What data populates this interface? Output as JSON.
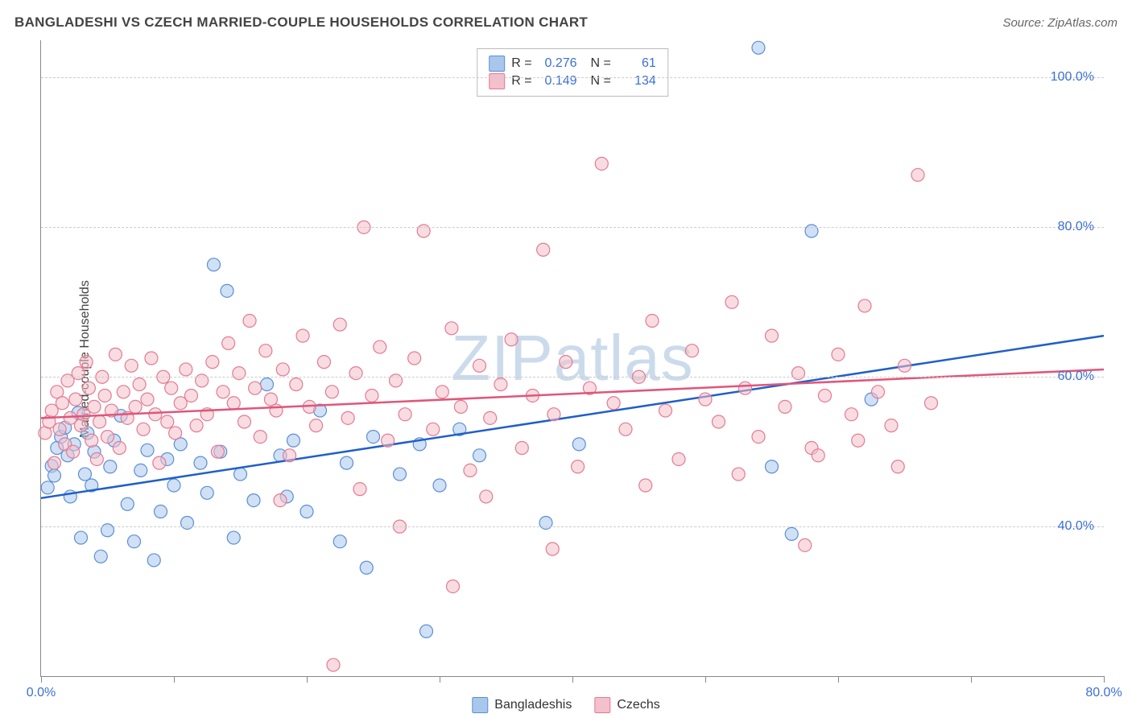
{
  "title": "BANGLADESHI VS CZECH MARRIED-COUPLE HOUSEHOLDS CORRELATION CHART",
  "source": "Source: ZipAtlas.com",
  "watermark": "ZIPatlas",
  "ylabel": "Married-couple Households",
  "chart": {
    "type": "scatter",
    "xlim": [
      0,
      80
    ],
    "ylim": [
      20,
      105
    ],
    "xticks": [
      0,
      10,
      20,
      30,
      40,
      50,
      60,
      70,
      80
    ],
    "xtick_labels": {
      "0": "0.0%",
      "80": "80.0%"
    },
    "yticks": [
      40,
      60,
      80,
      100
    ],
    "ytick_labels": [
      "40.0%",
      "60.0%",
      "80.0%",
      "100.0%"
    ],
    "grid_color": "#cccccc",
    "background_color": "#ffffff",
    "axis_color": "#888888",
    "marker_radius": 8,
    "marker_opacity": 0.55,
    "series": [
      {
        "name": "Bangladeshis",
        "fill": "#a9c7ec",
        "stroke": "#5a8fd6",
        "R": "0.276",
        "N": "61",
        "trend": {
          "color": "#1f5fc9",
          "width": 2.5,
          "y_at_x0": 43.8,
          "y_at_xmax": 65.5
        },
        "points": [
          [
            0.5,
            45.2
          ],
          [
            0.8,
            48.1
          ],
          [
            1.0,
            46.8
          ],
          [
            1.2,
            50.5
          ],
          [
            1.5,
            52.0
          ],
          [
            1.8,
            53.2
          ],
          [
            2.0,
            49.5
          ],
          [
            2.2,
            44.0
          ],
          [
            2.5,
            51.0
          ],
          [
            2.8,
            55.2
          ],
          [
            3.0,
            38.5
          ],
          [
            3.3,
            47.0
          ],
          [
            3.5,
            52.5
          ],
          [
            3.8,
            45.5
          ],
          [
            4.0,
            50.0
          ],
          [
            4.5,
            36.0
          ],
          [
            5.0,
            39.5
          ],
          [
            5.2,
            48.0
          ],
          [
            5.5,
            51.5
          ],
          [
            6.0,
            54.8
          ],
          [
            6.5,
            43.0
          ],
          [
            7.0,
            38.0
          ],
          [
            7.5,
            47.5
          ],
          [
            8.0,
            50.2
          ],
          [
            8.5,
            35.5
          ],
          [
            9.0,
            42.0
          ],
          [
            9.5,
            49.0
          ],
          [
            10.0,
            45.5
          ],
          [
            10.5,
            51.0
          ],
          [
            11.0,
            40.5
          ],
          [
            12.0,
            48.5
          ],
          [
            12.5,
            44.5
          ],
          [
            13.0,
            75.0
          ],
          [
            13.5,
            50.0
          ],
          [
            14.0,
            71.5
          ],
          [
            14.5,
            38.5
          ],
          [
            15.0,
            47.0
          ],
          [
            16.0,
            43.5
          ],
          [
            17.0,
            59.0
          ],
          [
            18.0,
            49.5
          ],
          [
            18.5,
            44.0
          ],
          [
            19.0,
            51.5
          ],
          [
            20.0,
            42.0
          ],
          [
            21.0,
            55.5
          ],
          [
            22.5,
            38.0
          ],
          [
            23.0,
            48.5
          ],
          [
            24.5,
            34.5
          ],
          [
            25.0,
            52.0
          ],
          [
            27.0,
            47.0
          ],
          [
            28.5,
            51.0
          ],
          [
            29.0,
            26.0
          ],
          [
            30.0,
            45.5
          ],
          [
            31.5,
            53.0
          ],
          [
            33.0,
            49.5
          ],
          [
            38.0,
            40.5
          ],
          [
            40.5,
            51.0
          ],
          [
            54.0,
            104.0
          ],
          [
            56.5,
            39.0
          ],
          [
            58.0,
            79.5
          ],
          [
            62.5,
            57.0
          ],
          [
            55.0,
            48.0
          ]
        ]
      },
      {
        "name": "Czechs",
        "fill": "#f3c0cb",
        "stroke": "#e47a93",
        "R": "0.149",
        "N": "134",
        "trend": {
          "color": "#e0567a",
          "width": 2.5,
          "y_at_x0": 54.5,
          "y_at_xmax": 61.0
        },
        "points": [
          [
            0.3,
            52.5
          ],
          [
            0.6,
            54.0
          ],
          [
            0.8,
            55.5
          ],
          [
            1.0,
            48.5
          ],
          [
            1.2,
            58.0
          ],
          [
            1.4,
            53.0
          ],
          [
            1.6,
            56.5
          ],
          [
            1.8,
            51.0
          ],
          [
            2.0,
            59.5
          ],
          [
            2.2,
            54.5
          ],
          [
            2.4,
            50.0
          ],
          [
            2.6,
            57.0
          ],
          [
            2.8,
            60.5
          ],
          [
            3.0,
            53.5
          ],
          [
            3.2,
            55.0
          ],
          [
            3.4,
            62.0
          ],
          [
            3.6,
            58.5
          ],
          [
            3.8,
            51.5
          ],
          [
            4.0,
            56.0
          ],
          [
            4.2,
            49.0
          ],
          [
            4.4,
            54.0
          ],
          [
            4.6,
            60.0
          ],
          [
            4.8,
            57.5
          ],
          [
            5.0,
            52.0
          ],
          [
            5.3,
            55.5
          ],
          [
            5.6,
            63.0
          ],
          [
            5.9,
            50.5
          ],
          [
            6.2,
            58.0
          ],
          [
            6.5,
            54.5
          ],
          [
            6.8,
            61.5
          ],
          [
            7.1,
            56.0
          ],
          [
            7.4,
            59.0
          ],
          [
            7.7,
            53.0
          ],
          [
            8.0,
            57.0
          ],
          [
            8.3,
            62.5
          ],
          [
            8.6,
            55.0
          ],
          [
            8.9,
            48.5
          ],
          [
            9.2,
            60.0
          ],
          [
            9.5,
            54.0
          ],
          [
            9.8,
            58.5
          ],
          [
            10.1,
            52.5
          ],
          [
            10.5,
            56.5
          ],
          [
            10.9,
            61.0
          ],
          [
            11.3,
            57.5
          ],
          [
            11.7,
            53.5
          ],
          [
            12.1,
            59.5
          ],
          [
            12.5,
            55.0
          ],
          [
            12.9,
            62.0
          ],
          [
            13.3,
            50.0
          ],
          [
            13.7,
            58.0
          ],
          [
            14.1,
            64.5
          ],
          [
            14.5,
            56.5
          ],
          [
            14.9,
            60.5
          ],
          [
            15.3,
            54.0
          ],
          [
            15.7,
            67.5
          ],
          [
            16.1,
            58.5
          ],
          [
            16.5,
            52.0
          ],
          [
            16.9,
            63.5
          ],
          [
            17.3,
            57.0
          ],
          [
            17.7,
            55.5
          ],
          [
            18.2,
            61.0
          ],
          [
            18.7,
            49.5
          ],
          [
            19.2,
            59.0
          ],
          [
            19.7,
            65.5
          ],
          [
            20.2,
            56.0
          ],
          [
            20.7,
            53.5
          ],
          [
            21.3,
            62.0
          ],
          [
            21.9,
            58.0
          ],
          [
            22.5,
            67.0
          ],
          [
            23.1,
            54.5
          ],
          [
            23.7,
            60.5
          ],
          [
            24.3,
            80.0
          ],
          [
            24.9,
            57.5
          ],
          [
            25.5,
            64.0
          ],
          [
            26.1,
            51.5
          ],
          [
            26.7,
            59.5
          ],
          [
            27.4,
            55.0
          ],
          [
            28.1,
            62.5
          ],
          [
            28.8,
            79.5
          ],
          [
            29.5,
            53.0
          ],
          [
            30.2,
            58.0
          ],
          [
            30.9,
            66.5
          ],
          [
            31.6,
            56.0
          ],
          [
            32.3,
            47.5
          ],
          [
            33.0,
            61.5
          ],
          [
            33.8,
            54.5
          ],
          [
            34.6,
            59.0
          ],
          [
            35.4,
            65.0
          ],
          [
            36.2,
            50.5
          ],
          [
            37.0,
            57.5
          ],
          [
            37.8,
            77.0
          ],
          [
            38.6,
            55.0
          ],
          [
            39.5,
            62.0
          ],
          [
            40.4,
            48.0
          ],
          [
            41.3,
            58.5
          ],
          [
            42.2,
            88.5
          ],
          [
            43.1,
            56.5
          ],
          [
            44.0,
            53.0
          ],
          [
            45.0,
            60.0
          ],
          [
            46.0,
            67.5
          ],
          [
            47.0,
            55.5
          ],
          [
            48.0,
            49.0
          ],
          [
            49.0,
            63.5
          ],
          [
            50.0,
            57.0
          ],
          [
            51.0,
            54.0
          ],
          [
            52.0,
            70.0
          ],
          [
            53.0,
            58.5
          ],
          [
            54.0,
            52.0
          ],
          [
            55.0,
            65.5
          ],
          [
            56.0,
            56.0
          ],
          [
            57.0,
            60.5
          ],
          [
            58.0,
            50.5
          ],
          [
            59.0,
            57.5
          ],
          [
            60.0,
            63.0
          ],
          [
            61.0,
            55.0
          ],
          [
            62.0,
            69.5
          ],
          [
            63.0,
            58.0
          ],
          [
            64.0,
            53.5
          ],
          [
            65.0,
            61.5
          ],
          [
            66.0,
            87.0
          ],
          [
            67.0,
            56.5
          ],
          [
            38.5,
            37.0
          ],
          [
            31.0,
            32.0
          ],
          [
            22.0,
            21.5
          ],
          [
            27.0,
            40.0
          ],
          [
            45.5,
            45.5
          ],
          [
            52.5,
            47.0
          ],
          [
            58.5,
            49.5
          ],
          [
            61.5,
            51.5
          ],
          [
            64.5,
            48.0
          ],
          [
            57.5,
            37.5
          ],
          [
            18.0,
            43.5
          ],
          [
            33.5,
            44.0
          ],
          [
            24.0,
            45.0
          ]
        ]
      }
    ],
    "legend_bottom": [
      {
        "label": "Bangladeshis",
        "fill": "#a9c7ec",
        "stroke": "#5a8fd6"
      },
      {
        "label": "Czechs",
        "fill": "#f3c0cb",
        "stroke": "#e47a93"
      }
    ]
  }
}
